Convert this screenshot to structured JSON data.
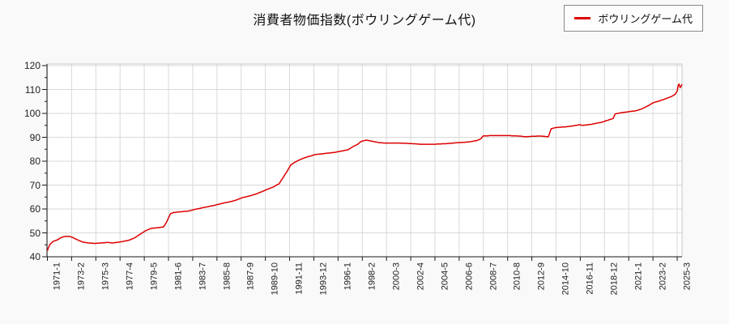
{
  "title": "消費者物価指数(ボウリングゲーム代)",
  "legend": {
    "label": "ボウリングゲーム代"
  },
  "colors": {
    "page_bg": "#f9f9f9",
    "plot_bg": "#ffffff",
    "grid": "#d9d9d9",
    "axis": "#1a1a1a",
    "border": "#c8c8c8",
    "series": "#dd0000",
    "text": "#222222"
  },
  "chart_data": {
    "type": "line",
    "title": "消費者物価指数(ボウリングゲーム代)",
    "series_name": "ボウリングゲーム代",
    "line_color": "#dd0000",
    "legend_position": "top-right",
    "grid": true,
    "ylim": [
      40,
      120
    ],
    "y_ticks": [
      40,
      50,
      60,
      70,
      80,
      90,
      100,
      110,
      120
    ],
    "y_minor_step": 5,
    "x_start": "1971-1",
    "x_end": "2025-8",
    "x_tick_labels": [
      "1971-1",
      "1973-2",
      "1975-3",
      "1977-4",
      "1979-5",
      "1981-6",
      "1983-7",
      "1985-8",
      "1987-9",
      "1989-10",
      "1991-11",
      "1993-12",
      "1996-1",
      "1998-2",
      "2000-3",
      "2002-4",
      "2004-5",
      "2006-6",
      "2008-7",
      "2010-8",
      "2012-9",
      "2014-10",
      "2016-11",
      "2018-12",
      "2021-1",
      "2023-2",
      "2025-3"
    ],
    "x_tick_interval_months": 25,
    "note": "Monthly CPI series; values read from plot at anchor months, intermediate months linearly interpolated.",
    "anchor_points": [
      [
        "1971-1",
        42.5
      ],
      [
        "1971-2",
        43.8
      ],
      [
        "1971-4",
        45.4
      ],
      [
        "1971-7",
        46.4
      ],
      [
        "1971-11",
        47.0
      ],
      [
        "1972-3",
        48.0
      ],
      [
        "1972-7",
        48.5
      ],
      [
        "1972-12",
        48.5
      ],
      [
        "1973-3",
        48.1
      ],
      [
        "1973-8",
        47.1
      ],
      [
        "1974-1",
        46.2
      ],
      [
        "1974-7",
        45.8
      ],
      [
        "1975-2",
        45.6
      ],
      [
        "1975-9",
        45.8
      ],
      [
        "1976-3",
        46.0
      ],
      [
        "1976-8",
        45.8
      ],
      [
        "1977-1",
        46.0
      ],
      [
        "1977-7",
        46.4
      ],
      [
        "1978-1",
        46.9
      ],
      [
        "1978-7",
        47.9
      ],
      [
        "1979-1",
        49.5
      ],
      [
        "1979-7",
        51.0
      ],
      [
        "1979-12",
        51.9
      ],
      [
        "1980-6",
        52.1
      ],
      [
        "1981-1",
        52.5
      ],
      [
        "1981-4",
        54.5
      ],
      [
        "1981-8",
        58.0
      ],
      [
        "1981-11",
        58.5
      ],
      [
        "1982-6",
        58.8
      ],
      [
        "1983-2",
        59.1
      ],
      [
        "1983-9",
        59.8
      ],
      [
        "1984-4",
        60.4
      ],
      [
        "1984-11",
        61.0
      ],
      [
        "1985-6",
        61.6
      ],
      [
        "1986-1",
        62.3
      ],
      [
        "1986-8",
        62.9
      ],
      [
        "1987-3",
        63.6
      ],
      [
        "1987-10",
        64.7
      ],
      [
        "1988-5",
        65.4
      ],
      [
        "1988-12",
        66.2
      ],
      [
        "1989-6",
        67.2
      ],
      [
        "1989-12",
        68.2
      ],
      [
        "1990-6",
        69.2
      ],
      [
        "1990-12",
        70.5
      ],
      [
        "1991-4",
        73.0
      ],
      [
        "1991-8",
        75.5
      ],
      [
        "1991-12",
        78.3
      ],
      [
        "1992-4",
        79.5
      ],
      [
        "1992-9",
        80.5
      ],
      [
        "1993-2",
        81.4
      ],
      [
        "1993-8",
        82.1
      ],
      [
        "1994-1",
        82.7
      ],
      [
        "1994-8",
        83.1
      ],
      [
        "1995-3",
        83.4
      ],
      [
        "1995-10",
        83.7
      ],
      [
        "1996-4",
        84.2
      ],
      [
        "1996-11",
        84.7
      ],
      [
        "1997-4",
        86.0
      ],
      [
        "1997-9",
        87.0
      ],
      [
        "1998-1",
        88.3
      ],
      [
        "1998-6",
        88.8
      ],
      [
        "1999-1",
        88.3
      ],
      [
        "1999-8",
        87.7
      ],
      [
        "2000-3",
        87.6
      ],
      [
        "2001-3",
        87.6
      ],
      [
        "2002-3",
        87.4
      ],
      [
        "2003-3",
        87.1
      ],
      [
        "2004-3",
        87.1
      ],
      [
        "2005-3",
        87.3
      ],
      [
        "2006-3",
        87.7
      ],
      [
        "2007-3",
        88.0
      ],
      [
        "2007-12",
        88.6
      ],
      [
        "2008-4",
        89.3
      ],
      [
        "2008-7",
        90.6
      ],
      [
        "2009-6",
        90.7
      ],
      [
        "2010-8",
        90.7
      ],
      [
        "2011-8",
        90.5
      ],
      [
        "2012-2",
        90.2
      ],
      [
        "2012-9",
        90.4
      ],
      [
        "2013-6",
        90.5
      ],
      [
        "2014-2",
        90.2
      ],
      [
        "2014-5",
        93.6
      ],
      [
        "2014-10",
        94.1
      ],
      [
        "2015-6",
        94.3
      ],
      [
        "2016-3",
        94.7
      ],
      [
        "2016-10",
        95.3
      ],
      [
        "2017-1",
        95.0
      ],
      [
        "2017-8",
        95.3
      ],
      [
        "2018-3",
        95.8
      ],
      [
        "2018-10",
        96.4
      ],
      [
        "2019-3",
        97.1
      ],
      [
        "2019-9",
        97.9
      ],
      [
        "2019-11",
        99.8
      ],
      [
        "2020-6",
        100.3
      ],
      [
        "2021-1",
        100.7
      ],
      [
        "2021-8",
        101.1
      ],
      [
        "2022-2",
        101.8
      ],
      [
        "2022-9",
        103.2
      ],
      [
        "2023-2",
        104.4
      ],
      [
        "2023-9",
        105.3
      ],
      [
        "2024-3",
        106.1
      ],
      [
        "2024-9",
        107.0
      ],
      [
        "2025-1",
        108.0
      ],
      [
        "2025-3",
        109.3
      ],
      [
        "2025-4",
        111.6
      ],
      [
        "2025-5",
        112.3
      ],
      [
        "2025-6",
        110.8
      ],
      [
        "2025-7",
        111.3
      ],
      [
        "2025-8",
        112.2
      ]
    ]
  }
}
